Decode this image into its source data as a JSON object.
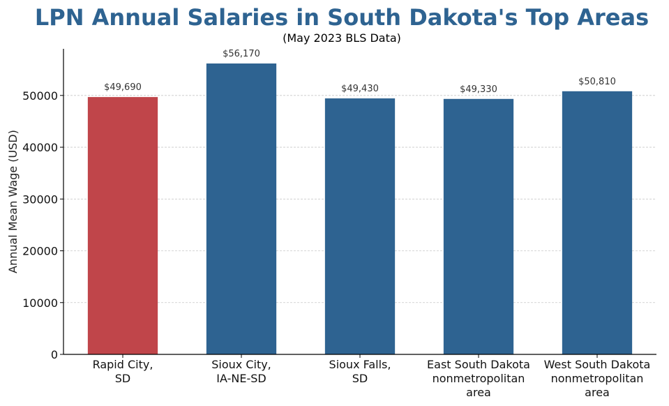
{
  "colors": {
    "title": "#2e6391",
    "highlight_bar": "#c0454a",
    "default_bar": "#2e6391"
  },
  "chart_data": {
    "type": "bar",
    "title": "LPN Annual Salaries in South Dakota's Top Areas",
    "subtitle": "(May 2023 BLS Data)",
    "xlabel": "",
    "ylabel": "Annual Mean Wage (USD)",
    "ylim": [
      0,
      59000
    ],
    "yticks": [
      0,
      10000,
      20000,
      30000,
      40000,
      50000
    ],
    "grid": "horizontal dashed",
    "categories": [
      [
        "Rapid City,",
        "SD"
      ],
      [
        "Sioux City,",
        "IA-NE-SD"
      ],
      [
        "Sioux Falls,",
        "SD"
      ],
      [
        "East South Dakota",
        "nonmetropolitan",
        "area"
      ],
      [
        "West South Dakota",
        "nonmetropolitan",
        "area"
      ]
    ],
    "values": [
      49690,
      56170,
      49430,
      49330,
      50810
    ],
    "value_labels": [
      "$49,690",
      "$56,170",
      "$49,430",
      "$49,330",
      "$50,810"
    ],
    "bar_colors": [
      "#c0454a",
      "#2e6391",
      "#2e6391",
      "#2e6391",
      "#2e6391"
    ]
  }
}
